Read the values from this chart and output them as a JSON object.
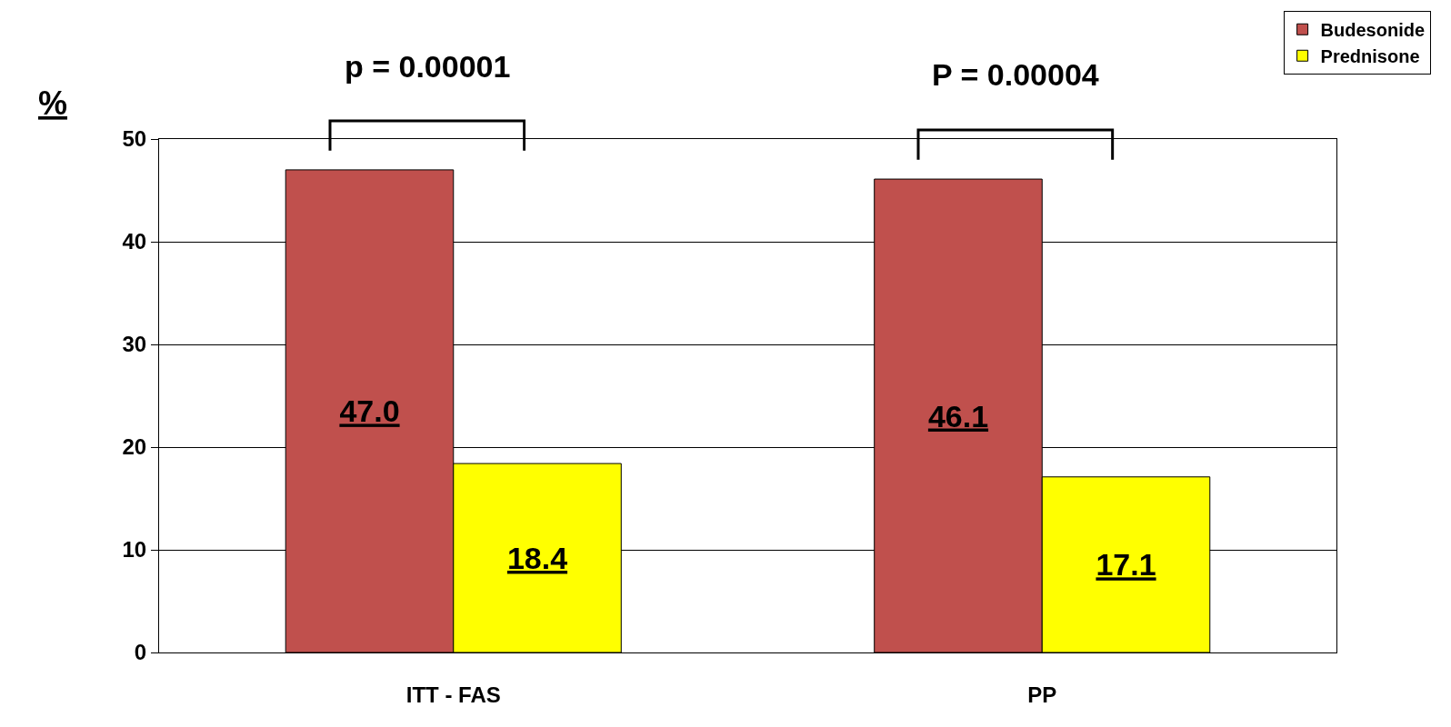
{
  "chart_data": {
    "type": "bar",
    "ylabel": "%",
    "categories": [
      "ITT - FAS",
      "PP"
    ],
    "series": [
      {
        "name": "Budesonide",
        "color": "#c0504d",
        "values": [
          47.0,
          46.1
        ],
        "value_labels": [
          "47.0",
          "46.1"
        ]
      },
      {
        "name": "Prednisone",
        "color": "#ffff00",
        "values": [
          18.4,
          17.1
        ],
        "value_labels": [
          "18.4",
          "17.1"
        ]
      }
    ],
    "ylim": [
      0,
      50
    ],
    "yticks": [
      0,
      10,
      20,
      30,
      40,
      50
    ],
    "grid": "y",
    "legend": "top right",
    "annotations": [
      "p = 0.00001",
      "P = 0.00004"
    ]
  }
}
